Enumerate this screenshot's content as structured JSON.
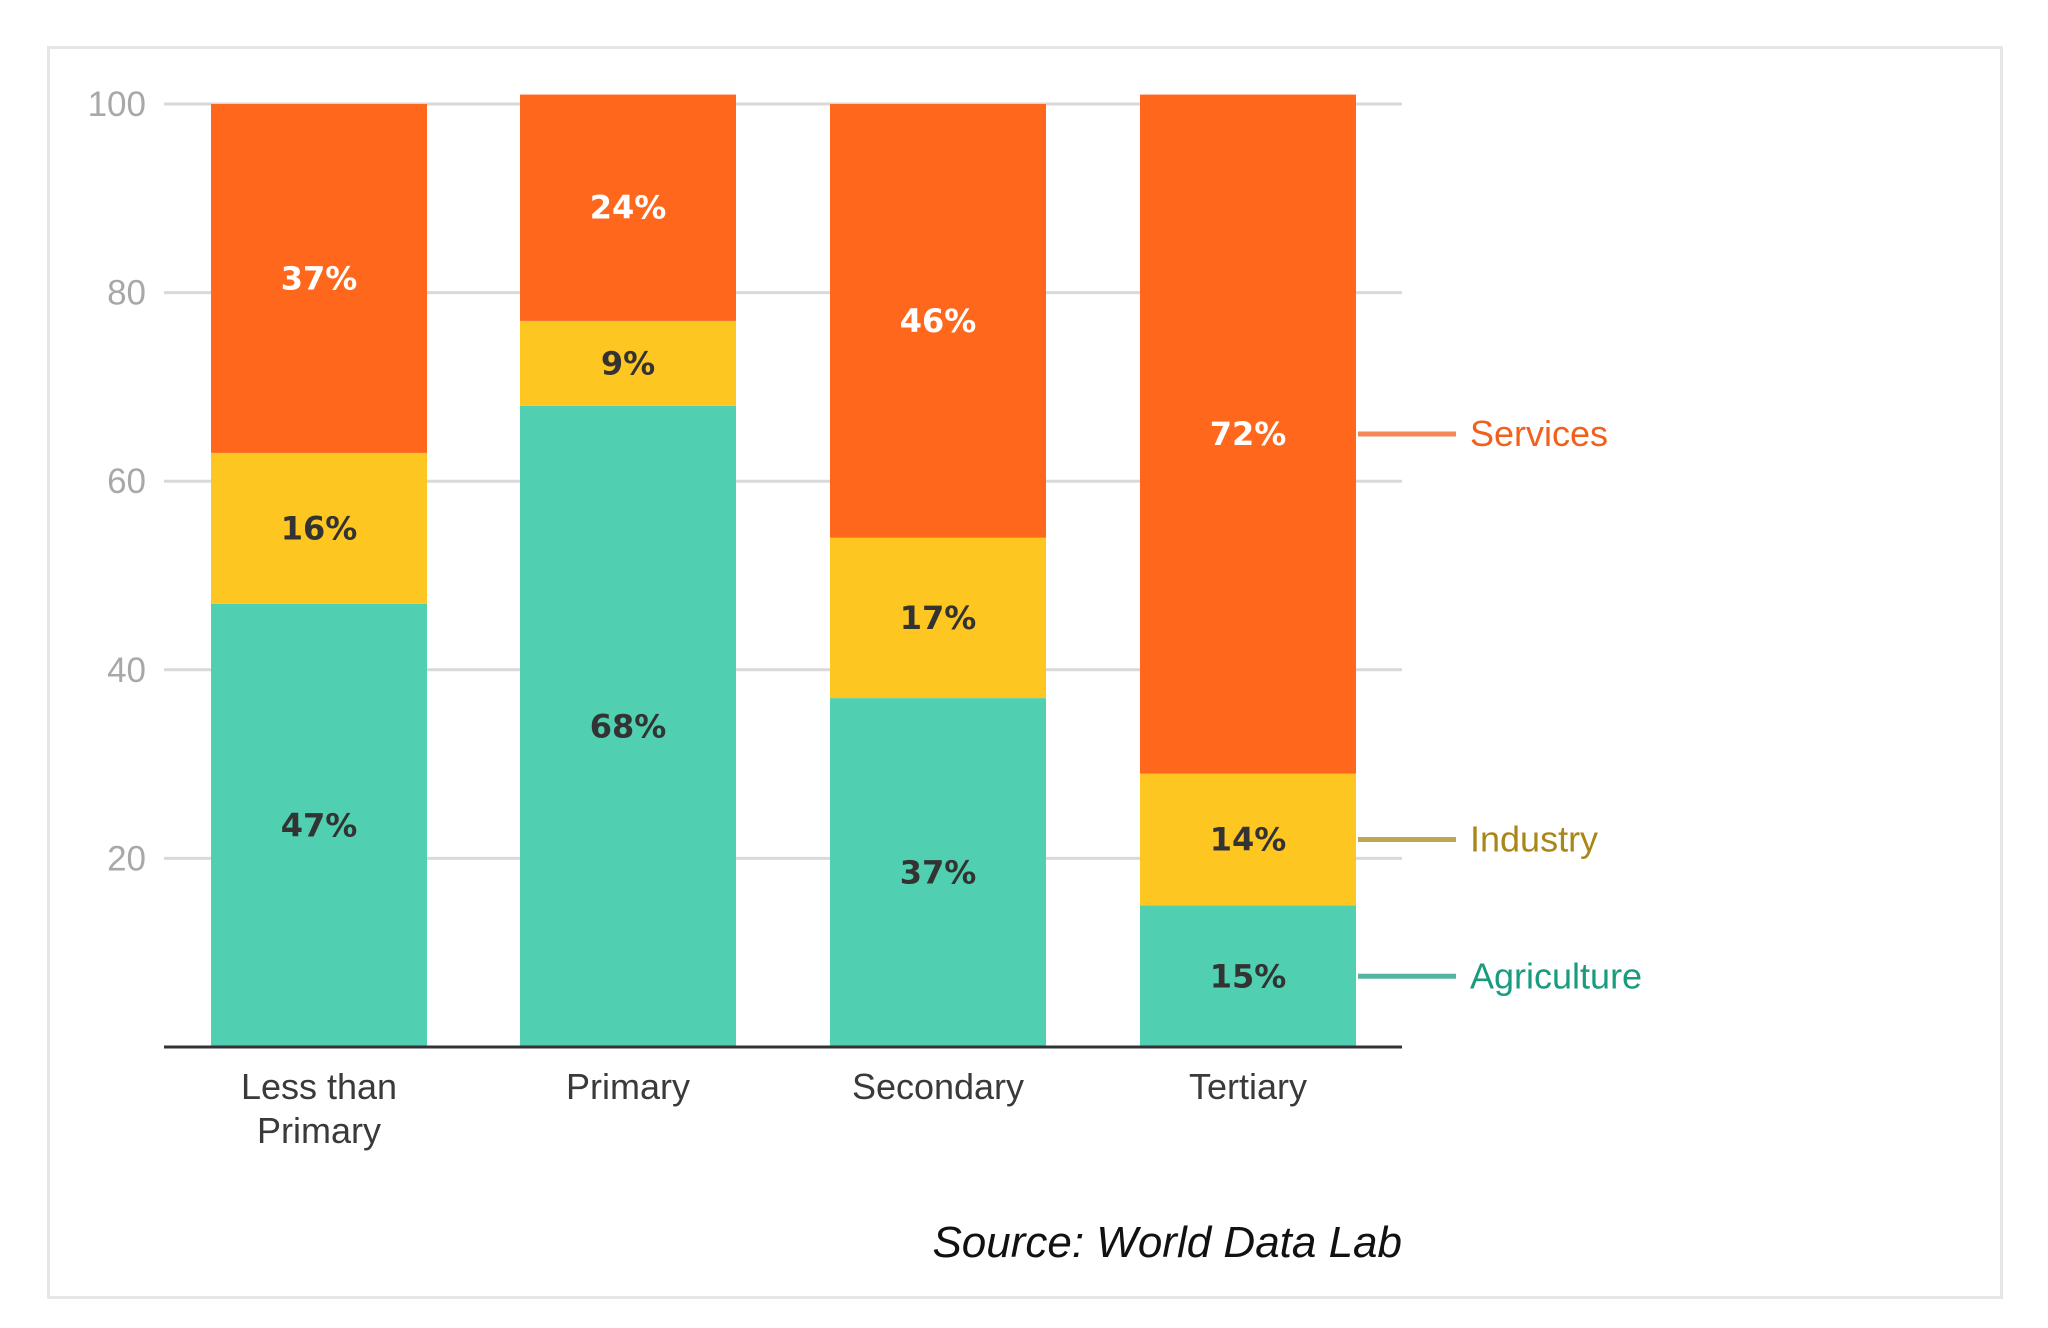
{
  "chart_data": {
    "type": "bar",
    "stacked": true,
    "categories": [
      [
        "Less than",
        "Primary"
      ],
      [
        "Primary"
      ],
      [
        "Secondary"
      ],
      [
        "Tertiary"
      ]
    ],
    "series": [
      {
        "name": "Agriculture",
        "values": [
          47,
          68,
          37,
          15
        ],
        "labels": [
          "47%",
          "68%",
          "37%",
          "15%"
        ],
        "color": "#50cfb1",
        "legend_color": "#1a9b80",
        "label_color": "#333333"
      },
      {
        "name": "Industry",
        "values": [
          16,
          9,
          17,
          14
        ],
        "labels": [
          "16%",
          "9%",
          "17%",
          "14%"
        ],
        "color": "#fec620",
        "legend_color": "#a98618",
        "label_color": "#333333"
      },
      {
        "name": "Services",
        "values": [
          37,
          24,
          46,
          72
        ],
        "labels": [
          "37%",
          "24%",
          "46%",
          "72%"
        ],
        "color": "#ff671c",
        "legend_color": "#f0611d",
        "label_color": "#ffffff"
      }
    ],
    "yticks": [
      20,
      40,
      60,
      80,
      100
    ],
    "ylim": [
      0,
      100
    ],
    "grid": true,
    "legend": "right, inline labels",
    "source": "Source: World Data Lab"
  }
}
